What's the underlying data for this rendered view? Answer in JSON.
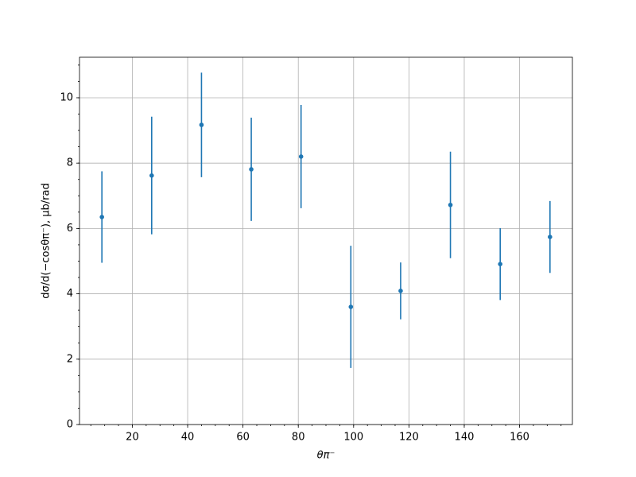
{
  "chart_data": {
    "type": "errorbar",
    "x_label": "θπ⁻",
    "y_label": "dσ/d(−cosθπ⁻), μb/rad",
    "x": [
      9,
      27,
      45,
      63,
      81,
      99,
      117,
      135,
      153,
      171
    ],
    "values": [
      6.35,
      7.62,
      9.17,
      7.81,
      8.2,
      3.6,
      4.09,
      6.72,
      4.91,
      5.74
    ],
    "errors": [
      1.4,
      1.8,
      1.6,
      1.58,
      1.58,
      1.87,
      0.87,
      1.63,
      1.1,
      1.1
    ],
    "color": "#1f77b4",
    "xlim": [
      0.9,
      179.1
    ],
    "xticks": [
      20,
      40,
      60,
      80,
      100,
      120,
      140,
      160
    ],
    "ylim": [
      0,
      11.24
    ],
    "yticks": [
      0,
      2,
      4,
      6,
      8,
      10
    ],
    "grid": true,
    "minor_ticks": true
  }
}
